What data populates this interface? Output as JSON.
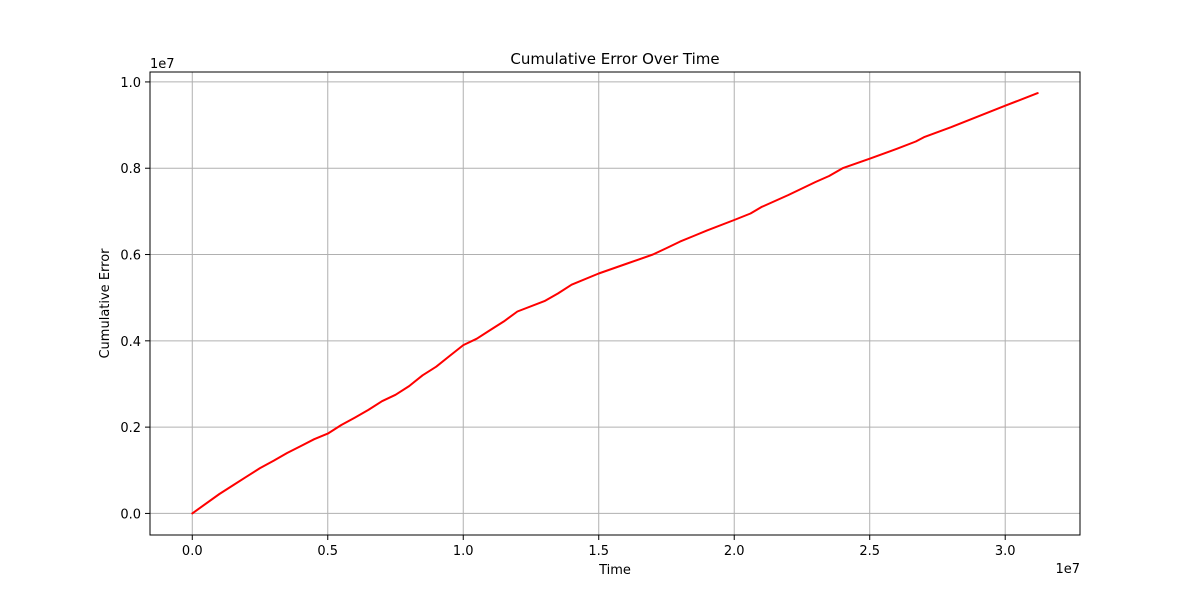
{
  "chart_data": {
    "type": "line",
    "title": "Cumulative Error Over Time",
    "xlabel": "Time",
    "ylabel": "Cumulative Error",
    "x_offset_label": "1e7",
    "y_offset_label": "1e7",
    "xlim": [
      -1560000,
      32760000
    ],
    "ylim": [
      -500000,
      10230000
    ],
    "xticks": [
      0,
      5000000,
      10000000,
      15000000,
      20000000,
      25000000,
      30000000
    ],
    "xtick_labels": [
      "0.0",
      "0.5",
      "1.0",
      "1.5",
      "2.0",
      "2.5",
      "3.0"
    ],
    "yticks": [
      0,
      2000000,
      4000000,
      6000000,
      8000000,
      10000000
    ],
    "ytick_labels": [
      "0.0",
      "0.2",
      "0.4",
      "0.6",
      "0.8",
      "1.0"
    ],
    "grid": true,
    "series": [
      {
        "color": "#ff0000",
        "x": [
          0,
          1000000,
          1500000,
          2000000,
          2500000,
          3000000,
          3500000,
          4000000,
          4500000,
          5000000,
          5500000,
          6000000,
          6500000,
          7000000,
          7500000,
          8000000,
          8500000,
          9000000,
          9500000,
          10000000,
          10500000,
          11000000,
          11500000,
          12000000,
          13000000,
          13500000,
          14000000,
          15000000,
          16000000,
          17000000,
          17500000,
          18000000,
          18500000,
          19000000,
          20000000,
          20600000,
          21000000,
          22000000,
          23000000,
          23500000,
          24000000,
          25000000,
          26000000,
          26700000,
          27000000,
          28000000,
          29000000,
          30000000,
          31200000
        ],
        "y": [
          0,
          450000,
          650000,
          850000,
          1050000,
          1220000,
          1400000,
          1560000,
          1720000,
          1850000,
          2050000,
          2220000,
          2400000,
          2600000,
          2750000,
          2950000,
          3200000,
          3400000,
          3650000,
          3900000,
          4050000,
          4250000,
          4450000,
          4680000,
          4920000,
          5100000,
          5300000,
          5560000,
          5780000,
          6000000,
          6150000,
          6300000,
          6430000,
          6560000,
          6800000,
          6950000,
          7100000,
          7380000,
          7680000,
          7820000,
          8000000,
          8220000,
          8450000,
          8620000,
          8720000,
          8950000,
          9200000,
          9450000,
          9740000
        ]
      }
    ]
  }
}
